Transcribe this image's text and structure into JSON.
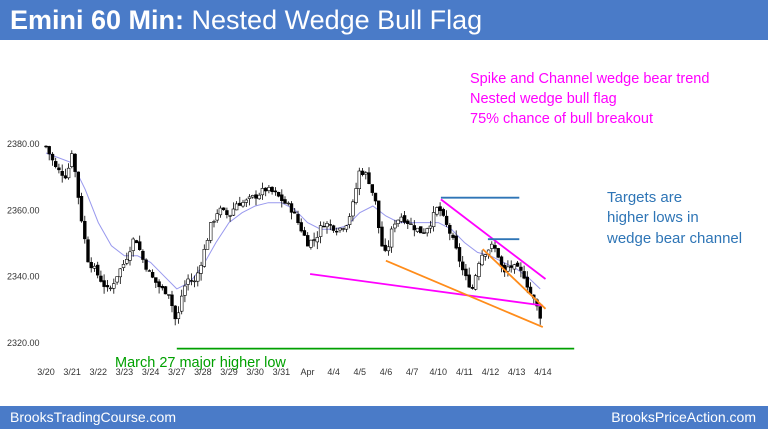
{
  "header": {
    "title_bold": "Emini 60 Min:",
    "title_rest": " Nested Wedge Bull Flag"
  },
  "footer": {
    "left": "BrooksTradingCourse.com",
    "right": "BrooksPriceAction.com"
  },
  "colors": {
    "header_bg": "#4a7bc8",
    "candle": "#000000",
    "moving_average": "#9999ee",
    "magenta": "#ff00ff",
    "orange": "#ff8c1a",
    "blue_lines": "#2e75b6",
    "green_line": "#00a000"
  },
  "annotations": {
    "magenta_lines": [
      "Spike and Channel wedge bear trend",
      "Nested wedge bull flag",
      "75% chance of bull breakout"
    ],
    "targets_lines": [
      "Targets are",
      "higher lows in",
      "wedge bear channel"
    ],
    "green_label": "March 27 major higher low"
  },
  "chart_data": {
    "type": "candlestick",
    "title": "Emini 60 Min: Nested Wedge Bull Flag",
    "xlabel": "",
    "ylabel": "",
    "y_ticks": [
      "2380.00",
      "2360.00",
      "2340.00",
      "2320.00"
    ],
    "y_tick_values": [
      2380,
      2360,
      2340,
      2320
    ],
    "ylim": [
      2316,
      2384
    ],
    "x_tick_labels": [
      "3/20",
      "3/21",
      "3/22",
      "3/23",
      "3/24",
      "3/27",
      "3/28",
      "3/29",
      "3/30",
      "3/31",
      "Apr",
      "4/4",
      "4/5",
      "4/6",
      "4/7",
      "4/10",
      "4/11",
      "4/12",
      "4/13",
      "4/14"
    ],
    "close_path": [
      [
        0,
        2379
      ],
      [
        0.4,
        2372
      ],
      [
        0.8,
        2370
      ],
      [
        1,
        2378
      ],
      [
        1.3,
        2360
      ],
      [
        1.6,
        2345
      ],
      [
        2,
        2340
      ],
      [
        2.4,
        2335
      ],
      [
        2.7,
        2340
      ],
      [
        3,
        2344
      ],
      [
        3.4,
        2352
      ],
      [
        3.7,
        2345
      ],
      [
        4,
        2340
      ],
      [
        4.4,
        2336
      ],
      [
        4.7,
        2335
      ],
      [
        5,
        2325
      ],
      [
        5.15,
        2333
      ],
      [
        5.4,
        2339
      ],
      [
        5.7,
        2338
      ],
      [
        6,
        2346
      ],
      [
        6.3,
        2355
      ],
      [
        6.6,
        2360
      ],
      [
        7,
        2358
      ],
      [
        7.3,
        2362
      ],
      [
        7.6,
        2362
      ],
      [
        8,
        2364
      ],
      [
        8.4,
        2366
      ],
      [
        8.7,
        2365
      ],
      [
        9,
        2363
      ],
      [
        9.4,
        2360
      ],
      [
        9.7,
        2355
      ],
      [
        10,
        2350
      ],
      [
        10.3,
        2351
      ],
      [
        10.6,
        2356
      ],
      [
        10.9,
        2355
      ],
      [
        11.2,
        2354
      ],
      [
        11.5,
        2356
      ],
      [
        11.7,
        2360
      ],
      [
        12,
        2372
      ],
      [
        12.3,
        2370
      ],
      [
        12.6,
        2362
      ],
      [
        12.8,
        2350
      ],
      [
        13,
        2346
      ],
      [
        13.3,
        2356
      ],
      [
        13.6,
        2358
      ],
      [
        14,
        2355
      ],
      [
        14.4,
        2353
      ],
      [
        14.7,
        2356
      ],
      [
        15,
        2361
      ],
      [
        15.2,
        2357
      ],
      [
        15.5,
        2352
      ],
      [
        15.8,
        2345
      ],
      [
        16,
        2340
      ],
      [
        16.3,
        2336
      ],
      [
        16.6,
        2346
      ],
      [
        16.9,
        2348
      ],
      [
        17.1,
        2349
      ],
      [
        17.3,
        2346
      ],
      [
        17.5,
        2340
      ],
      [
        17.7,
        2343
      ],
      [
        18,
        2342
      ],
      [
        18.3,
        2340
      ],
      [
        18.5,
        2335
      ],
      [
        18.7,
        2332
      ],
      [
        18.9,
        2328
      ]
    ],
    "moving_average": [
      [
        0,
        2377
      ],
      [
        1,
        2374
      ],
      [
        1.5,
        2366
      ],
      [
        2,
        2356
      ],
      [
        2.5,
        2349
      ],
      [
        3,
        2346
      ],
      [
        3.5,
        2346
      ],
      [
        4,
        2344
      ],
      [
        4.5,
        2340
      ],
      [
        5,
        2336
      ],
      [
        5.5,
        2338
      ],
      [
        6,
        2343
      ],
      [
        6.5,
        2350
      ],
      [
        7,
        2356
      ],
      [
        7.5,
        2359
      ],
      [
        8,
        2361
      ],
      [
        8.5,
        2362
      ],
      [
        9,
        2362
      ],
      [
        9.5,
        2360
      ],
      [
        10,
        2356
      ],
      [
        10.5,
        2354
      ],
      [
        11,
        2354
      ],
      [
        11.5,
        2355
      ],
      [
        12,
        2359
      ],
      [
        12.5,
        2361
      ],
      [
        13,
        2358
      ],
      [
        13.5,
        2356
      ],
      [
        14,
        2356
      ],
      [
        14.5,
        2356
      ],
      [
        15,
        2356
      ],
      [
        15.5,
        2354
      ],
      [
        16,
        2350
      ],
      [
        16.5,
        2347
      ],
      [
        17,
        2346
      ],
      [
        17.5,
        2344
      ],
      [
        18,
        2342
      ],
      [
        18.5,
        2339
      ],
      [
        18.9,
        2336
      ]
    ],
    "overlay_lines": [
      {
        "name": "magenta-bear-trend-line",
        "color": "magenta",
        "points": [
          [
            15.1,
            2363
          ],
          [
            19.1,
            2339
          ]
        ]
      },
      {
        "name": "magenta-lower-wedge-line",
        "color": "magenta",
        "points": [
          [
            10.1,
            2340.5
          ],
          [
            19.0,
            2331
          ]
        ]
      },
      {
        "name": "orange-inner-upper-line",
        "color": "orange",
        "points": [
          [
            16.7,
            2348
          ],
          [
            19.1,
            2330
          ]
        ]
      },
      {
        "name": "orange-lower-wedge-line",
        "color": "orange",
        "points": [
          [
            13.0,
            2344.5
          ],
          [
            19.0,
            2324.5
          ]
        ]
      },
      {
        "name": "blue-target-line-upper",
        "color": "blue_lines",
        "points": [
          [
            15.1,
            2363.5
          ],
          [
            18.1,
            2363.5
          ]
        ]
      },
      {
        "name": "blue-target-line-lower",
        "color": "blue_lines",
        "points": [
          [
            16.9,
            2351
          ],
          [
            18.1,
            2351
          ]
        ]
      },
      {
        "name": "green-higher-low-line",
        "color": "green_line",
        "points": [
          [
            5.0,
            2318
          ],
          [
            20.2,
            2318
          ]
        ]
      }
    ]
  }
}
